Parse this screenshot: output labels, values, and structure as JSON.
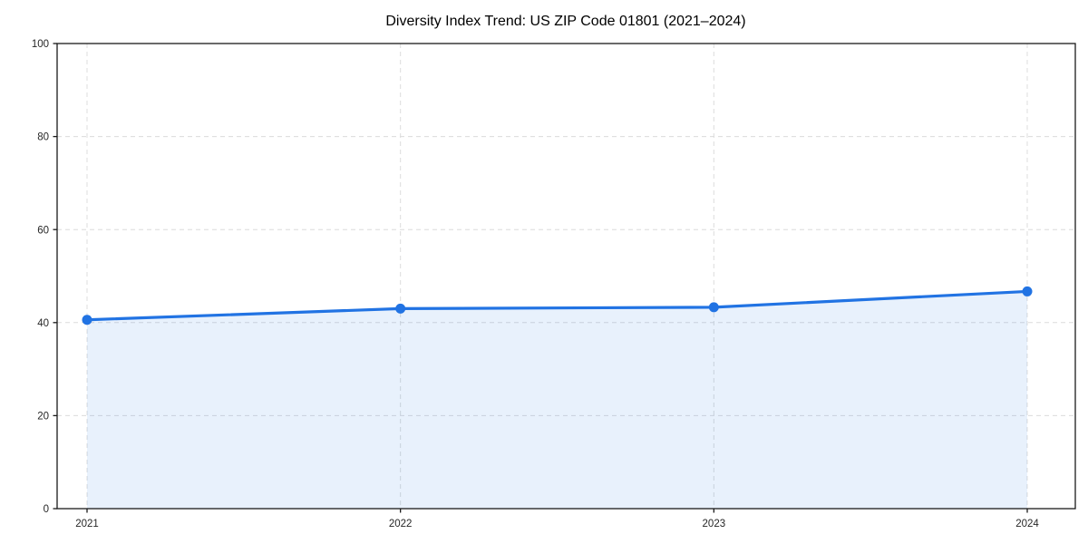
{
  "chart_data": {
    "type": "area",
    "title": "Diversity Index Trend: US ZIP Code 01801 (2021–2024)",
    "x": [
      "2021",
      "2022",
      "2023",
      "2024"
    ],
    "series": [
      {
        "name": "Diversity Index",
        "values": [
          40.6,
          43.0,
          43.3,
          46.7
        ]
      }
    ],
    "xlabel": "",
    "ylabel": "",
    "ylim": [
      0,
      100
    ],
    "yticks": [
      0,
      20,
      40,
      60,
      80,
      100
    ],
    "grid": true,
    "grid_style": "dashed",
    "legend": "none",
    "colors": {
      "line": "#2173e3",
      "marker": "#2173e3",
      "fill": "rgba(33,115,227,0.10)",
      "grid": "#dcdcdc",
      "spine": "#1a1a1a",
      "tick_label": "#262626",
      "background": "#ffffff"
    }
  }
}
